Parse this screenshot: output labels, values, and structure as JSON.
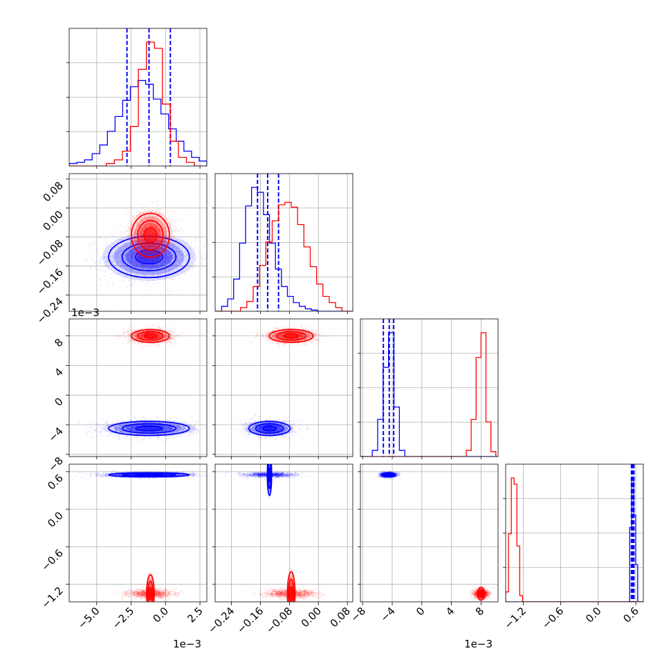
{
  "chart_data": {
    "type": "corner",
    "params": [
      "p0",
      "p1",
      "p2",
      "p3"
    ],
    "colors": {
      "a": "#0000ff",
      "b": "#ff0000",
      "grid": "#b0b0b0"
    },
    "axes": {
      "p0": {
        "range": [
          -7.0,
          3.0
        ],
        "ticks": [
          -5.0,
          -2.5,
          0.0,
          2.5
        ],
        "tick_labels": [
          "−5.0",
          "−2.5",
          "0.0",
          "2.5"
        ],
        "offset": "1e−3"
      },
      "p1": {
        "range": [
          -0.285,
          0.095
        ],
        "ticks": [
          -0.24,
          -0.16,
          -0.08,
          0.0,
          0.08
        ],
        "tick_labels": [
          "−0.24",
          "−0.16",
          "−0.08",
          "0.00",
          "0.08"
        ]
      },
      "p2": {
        "range": [
          -8.3,
          10.3
        ],
        "ticks": [
          -8,
          -4,
          0,
          4,
          8
        ],
        "tick_labels": [
          "−8",
          "−4",
          "0",
          "4",
          "8"
        ],
        "offset": "1e−3"
      },
      "p3": {
        "range": [
          -1.48,
          0.72
        ],
        "ticks": [
          -1.2,
          -0.6,
          0.0,
          0.6
        ],
        "tick_labels": [
          "−1.2",
          "−0.6",
          "0.0",
          "0.6"
        ]
      }
    },
    "series": [
      {
        "key": "a",
        "means": [
          -1.2,
          -0.135,
          -4.5,
          0.55
        ],
        "sds": [
          1.7,
          0.033,
          0.55,
          0.02
        ],
        "cov": {
          "p0-p1": 5.6e-06,
          "p0-p2": -2.8e-07,
          "p1-p2": -1.5e-06
        },
        "quantiles": {
          "p0": [
            -2.8,
            -1.2,
            0.35
          ],
          "p1": [
            -0.168,
            -0.14,
            -0.11
          ],
          "p2": [
            -5.2,
            -4.4,
            -3.8
          ],
          "p3": [
            0.53,
            0.55,
            0.57
          ]
        },
        "hist": {
          "p0": [
            0.02,
            0.03,
            0.05,
            0.1,
            0.17,
            0.28,
            0.4,
            0.53,
            0.64,
            0.69,
            0.66,
            0.54,
            0.42,
            0.3,
            0.2,
            0.12,
            0.07,
            0.04
          ],
          "p1": [
            0.04,
            0.1,
            0.26,
            0.55,
            0.85,
            1.0,
            0.96,
            0.78,
            0.55,
            0.34,
            0.2,
            0.12,
            0.07,
            0.04,
            0.02,
            0.01
          ],
          "p2": [
            0.05,
            0.3,
            0.72,
            1.0,
            0.4,
            0.05
          ],
          "p3": [
            0.0,
            0.6,
            1.0,
            0.7,
            0.3
          ]
        }
      },
      {
        "key": "b",
        "means": [
          -1.1,
          -0.075,
          8.0,
          -1.35
        ],
        "sds": [
          0.8,
          0.035,
          0.5,
          0.035
        ],
        "cov": {
          "p0-p1": -3.3e-06,
          "p1-p2": -3.5e-06
        },
        "hist": {
          "p0": [
            0.02,
            0.05,
            0.12,
            0.32,
            0.78,
            1.0,
            0.95,
            0.5,
            0.2,
            0.07,
            0.03
          ],
          "p1": [
            0.03,
            0.08,
            0.2,
            0.37,
            0.56,
            0.73,
            0.86,
            0.88,
            0.84,
            0.7,
            0.52,
            0.36,
            0.22,
            0.12,
            0.07,
            0.03
          ],
          "p2": [
            0.05,
            0.3,
            0.8,
            1.0,
            0.28,
            0.04
          ],
          "p3": [
            0.08,
            0.55,
            1.0,
            0.95,
            0.45,
            0.05
          ]
        }
      }
    ],
    "contour_levels": [
      0.5,
      1.0,
      1.5,
      2.0
    ],
    "grid": true
  }
}
